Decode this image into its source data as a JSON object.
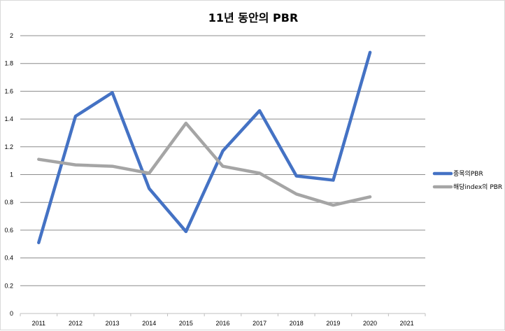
{
  "chart_data": {
    "type": "line",
    "title": "11년 동안의 PBR",
    "xlabel": "",
    "ylabel": "",
    "categories": [
      "2011",
      "2012",
      "2013",
      "2014",
      "2015",
      "2016",
      "2017",
      "2018",
      "2019",
      "2020",
      "2021"
    ],
    "ylim": [
      0,
      2
    ],
    "yticks": [
      "0",
      "0.2",
      "0.4",
      "0.6",
      "0.8",
      "1",
      "1.2",
      "1.4",
      "1.6",
      "1.8",
      "2"
    ],
    "grid": true,
    "legend_position": "right",
    "series": [
      {
        "name": "종목의PBR",
        "color": "#4472c4",
        "values": [
          0.51,
          1.42,
          1.59,
          0.9,
          0.59,
          1.17,
          1.46,
          0.99,
          0.96,
          1.88,
          null
        ]
      },
      {
        "name": "해당index의 PBR",
        "color": "#a5a5a5",
        "values": [
          1.11,
          1.07,
          1.06,
          1.01,
          1.37,
          1.06,
          1.01,
          0.86,
          0.78,
          0.84,
          null
        ]
      }
    ]
  }
}
